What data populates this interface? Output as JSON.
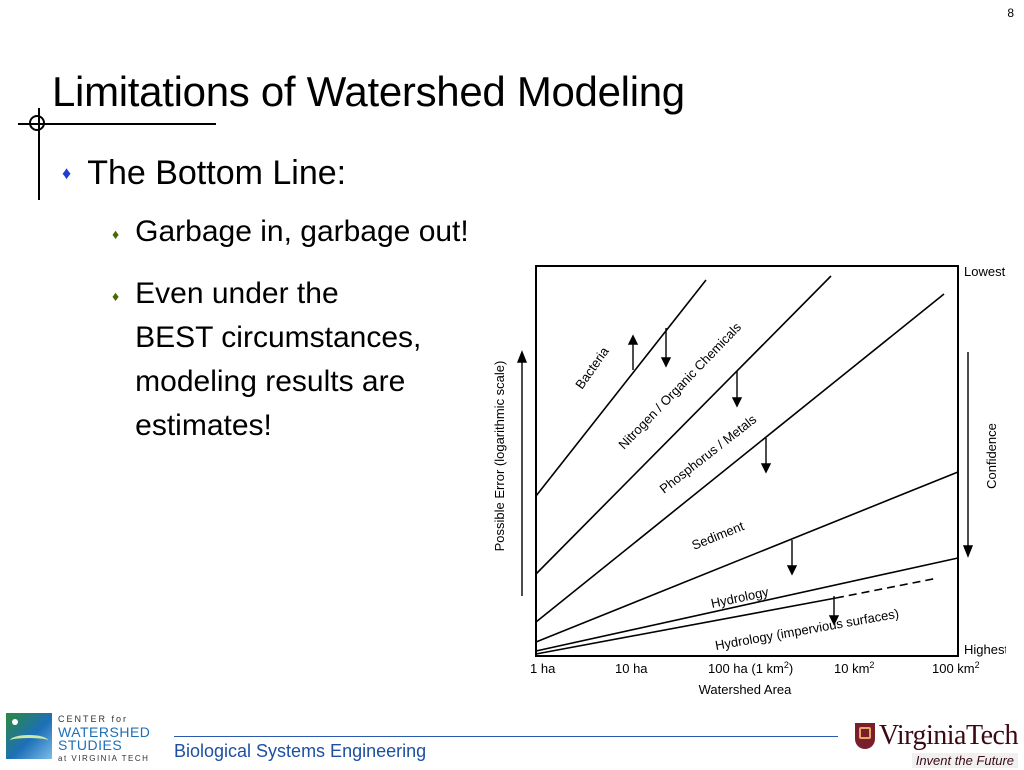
{
  "slide_number": "8",
  "title": "Limitations of Watershed Modeling",
  "bullets": {
    "level1": "The Bottom Line:",
    "level2a": "Garbage in, garbage out!",
    "level2b_lines": [
      "Even under the",
      "BEST circumstances,",
      "modeling results are",
      "estimates!"
    ]
  },
  "figure": {
    "y_axis_label": "Possible Error (logarithmic scale)",
    "right_axis_label": "Confidence",
    "right_top": "Lowest",
    "right_bottom": "Highest",
    "x_axis_label": "Watershed Area",
    "x_ticks": [
      "1 ha",
      "10 ha",
      "100 ha (1 km",
      "10 km",
      "100 km"
    ],
    "x_tick_sup": [
      "",
      "",
      "2",
      "2",
      "2"
    ],
    "x_tick_suffix": [
      "",
      "",
      ")",
      "",
      ""
    ],
    "lines": [
      "Bacteria",
      "Nitrogen / Organic Chemicals",
      "Phosphorus / Metals",
      "Sediment",
      "Hydrology",
      "Hydrology (impervious surfaces)"
    ]
  },
  "footer": {
    "department": "Biological Systems Engineering",
    "logo_left": [
      "CENTER for",
      "WATERSHED",
      "STUDIES",
      "at VIRGINIA TECH"
    ],
    "logo_right_name": "VirginiaTech",
    "logo_right_tagline": "Invent the Future"
  },
  "colors": {
    "bullet1": "#1f3fd0",
    "bullet2": "#4a6a00",
    "footer_text": "#1d4fa3",
    "vt_maroon": "#7a1e2e"
  }
}
